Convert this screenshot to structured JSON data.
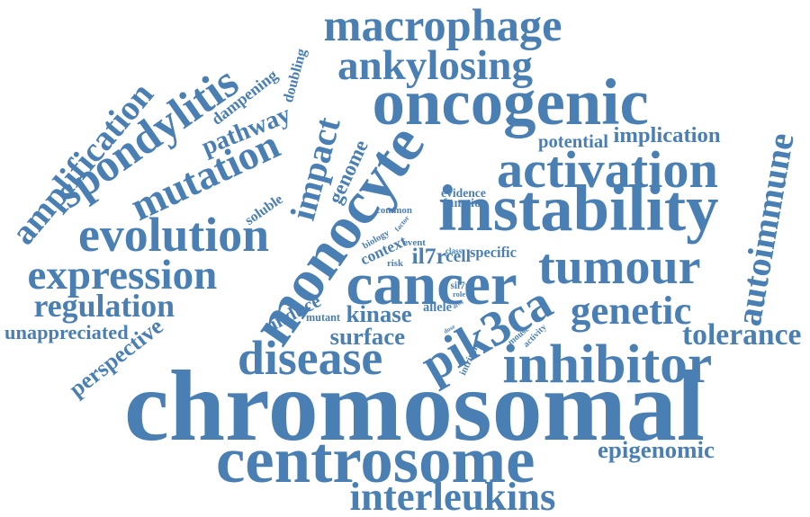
{
  "word_color": "#4a7fb4",
  "background_color": "#ffffff",
  "words": [
    {
      "text": "chromosomal",
      "weight": 10
    },
    {
      "text": "monocyte",
      "weight": 9
    },
    {
      "text": "centrosome",
      "weight": 8
    },
    {
      "text": "instability",
      "weight": 7
    },
    {
      "text": "oncogenic",
      "weight": 6
    },
    {
      "text": "pik3ca",
      "weight": 6
    },
    {
      "text": "cancer",
      "weight": 6
    },
    {
      "text": "macrophage",
      "weight": 6
    },
    {
      "text": "inhibitor",
      "weight": 5
    },
    {
      "text": "tumour",
      "weight": 5
    },
    {
      "text": "activation",
      "weight": 5
    },
    {
      "text": "disease",
      "weight": 5
    },
    {
      "text": "interleukins",
      "weight": 5
    },
    {
      "text": "mutation",
      "weight": 5
    },
    {
      "text": "evolution",
      "weight": 5
    },
    {
      "text": "expression",
      "weight": 4
    },
    {
      "text": "spondylitis",
      "weight": 4
    },
    {
      "text": "ankylosing",
      "weight": 4
    },
    {
      "text": "impact",
      "weight": 4
    },
    {
      "text": "amplification",
      "weight": 4
    },
    {
      "text": "genetic",
      "weight": 4
    },
    {
      "text": "autoimmune",
      "weight": 3
    },
    {
      "text": "regulation",
      "weight": 3
    },
    {
      "text": "pathway",
      "weight": 3
    },
    {
      "text": "tolerance",
      "weight": 3
    },
    {
      "text": "kinase",
      "weight": 3
    },
    {
      "text": "surface",
      "weight": 3
    },
    {
      "text": "perspective",
      "weight": 2
    },
    {
      "text": "unappreciated",
      "weight": 2
    },
    {
      "text": "epigenomic",
      "weight": 2
    },
    {
      "text": "implication",
      "weight": 2
    },
    {
      "text": "genome",
      "weight": 2
    },
    {
      "text": "induce",
      "weight": 2
    },
    {
      "text": "il7r",
      "weight": 2
    },
    {
      "text": "cell",
      "weight": 2
    },
    {
      "text": "doubling",
      "weight": 2
    },
    {
      "text": "context",
      "weight": 2
    },
    {
      "text": "potential",
      "weight": 2
    },
    {
      "text": "dampening",
      "weight": 1
    },
    {
      "text": "soluble",
      "weight": 1
    },
    {
      "text": "specific",
      "weight": 1
    },
    {
      "text": "evidence",
      "weight": 1
    },
    {
      "text": "function",
      "weight": 1
    },
    {
      "text": "common",
      "weight": 1
    },
    {
      "text": "mutant",
      "weight": 1
    },
    {
      "text": "allele",
      "weight": 1
    },
    {
      "text": "intrinsic",
      "weight": 1
    },
    {
      "text": "mouse",
      "weight": 1
    },
    {
      "text": "activity",
      "weight": 1
    },
    {
      "text": "biology",
      "weight": 1
    },
    {
      "text": "factor",
      "weight": 1
    },
    {
      "text": "event",
      "weight": 1
    },
    {
      "text": "risk",
      "weight": 1
    },
    {
      "text": "class",
      "weight": 1
    },
    {
      "text": "drug",
      "weight": 1
    },
    {
      "text": "sil7r",
      "weight": 1
    },
    {
      "text": "role",
      "weight": 1
    },
    {
      "text": "dose",
      "weight": 1
    }
  ]
}
